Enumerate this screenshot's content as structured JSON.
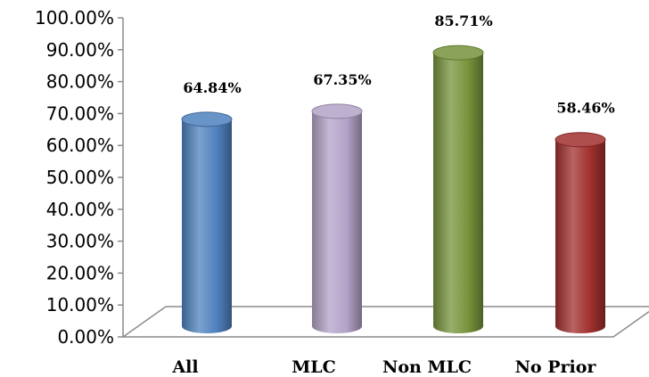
{
  "chart_data": {
    "type": "bar",
    "categories": [
      "All",
      "MLC",
      "Non MLC",
      "No Prior"
    ],
    "values": [
      64.84,
      67.35,
      85.71,
      58.46
    ],
    "data_labels": [
      "64.84%",
      "67.35%",
      "85.71%",
      "58.46%"
    ],
    "y_ticks": [
      "0.00%",
      "10.00%",
      "20.00%",
      "30.00%",
      "40.00%",
      "50.00%",
      "60.00%",
      "70.00%",
      "80.00%",
      "90.00%",
      "100.00%"
    ],
    "ylim": [
      0,
      100
    ],
    "grid": false,
    "legend": false,
    "style": "3d-cylinder",
    "colors": [
      "#4f81bd",
      "#b3a2c7",
      "#77933c",
      "#a0302e"
    ]
  }
}
